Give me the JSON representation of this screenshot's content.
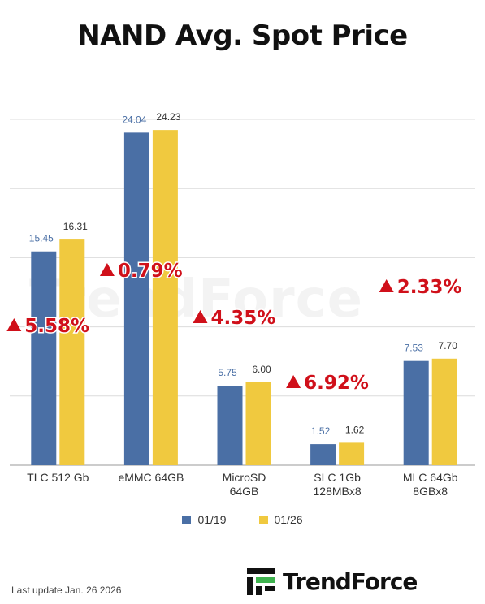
{
  "title": "NAND Avg. Spot Price",
  "watermark": "TrendForce",
  "legend": [
    {
      "label": "01/19",
      "color": "#4a6fa5"
    },
    {
      "label": "01/26",
      "color": "#f0c93f"
    }
  ],
  "footer": {
    "last_update": "Last update Jan. 26  2026",
    "brand": "TrendForce"
  },
  "colors": {
    "series1": "#4a6fa5",
    "series2": "#f0c93f",
    "change": "#d0101a",
    "value_label_1": "#4a6fa5",
    "value_label_2": "#333333"
  },
  "chart_data": {
    "type": "bar",
    "title": "NAND Avg. Spot Price",
    "categories": [
      [
        "TLC 512 Gb"
      ],
      [
        "eMMC 64GB"
      ],
      [
        "MicroSD",
        "64GB"
      ],
      [
        "SLC 1Gb",
        "128MBx8"
      ],
      [
        "MLC 64Gb",
        "8GBx8"
      ]
    ],
    "series": [
      {
        "name": "01/19",
        "values": [
          15.45,
          24.04,
          5.75,
          1.52,
          7.53
        ]
      },
      {
        "name": "01/26",
        "values": [
          16.31,
          24.23,
          6.0,
          1.62,
          7.7
        ]
      }
    ],
    "value_labels": [
      [
        "15.45",
        "24.04",
        "5.75",
        "1.52",
        "7.53"
      ],
      [
        "16.31",
        "24.23",
        "6.00",
        "1.62",
        "7.70"
      ]
    ],
    "changes": [
      "5.58%",
      "0.79%",
      "4.35%",
      "6.92%",
      "2.33%"
    ],
    "ylim": [
      0,
      25
    ],
    "grid": true,
    "legend_position": "bottom-center"
  }
}
